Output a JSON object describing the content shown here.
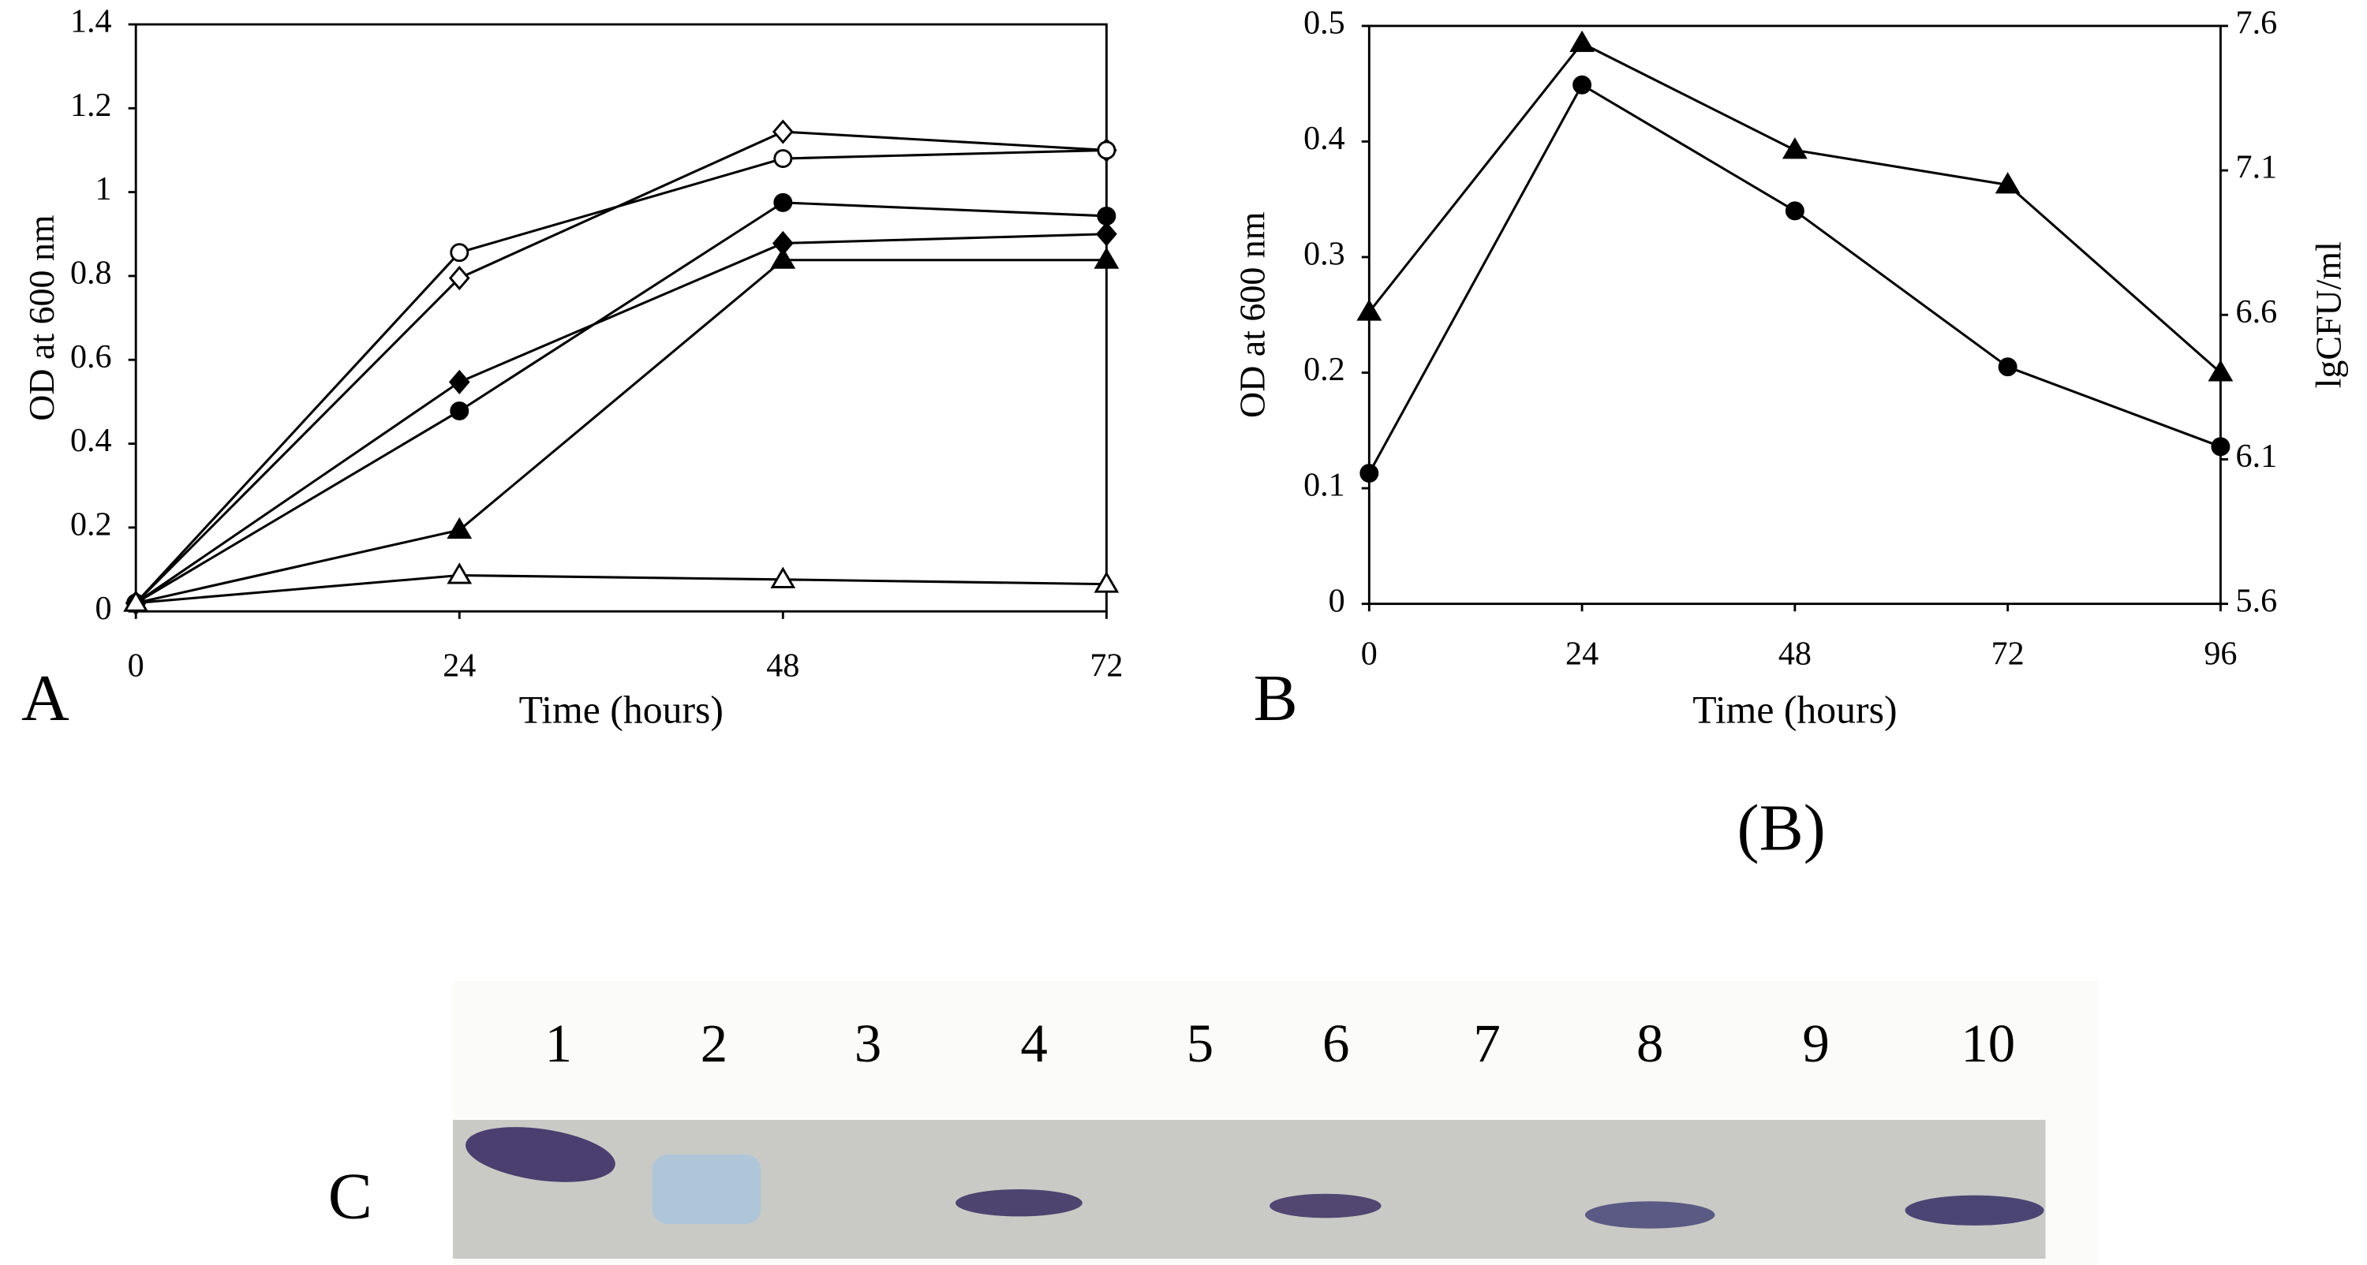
{
  "chart_data": [
    {
      "type": "line",
      "panel_label": "A",
      "x_label": "Time (hours)",
      "y_label": "OD at 600 nm",
      "x": [
        0,
        24,
        48,
        72
      ],
      "xlim": [
        0,
        72
      ],
      "xticks": [
        0,
        24,
        48,
        72
      ],
      "ylim": [
        0,
        1.4
      ],
      "yticks": [
        0,
        0.2,
        0.4,
        0.6,
        0.8,
        1,
        1.2,
        1.4
      ],
      "series": [
        {
          "marker": "diamond-open",
          "color": "#000000",
          "values": [
            0.02,
            0.795,
            1.144,
            1.1
          ]
        },
        {
          "marker": "circle-open",
          "color": "#000000",
          "values": [
            0.02,
            0.856,
            1.08,
            1.1
          ]
        },
        {
          "marker": "circle",
          "color": "#000000",
          "values": [
            0.02,
            0.478,
            0.975,
            0.943
          ]
        },
        {
          "marker": "diamond",
          "color": "#000000",
          "values": [
            0.02,
            0.547,
            0.878,
            0.9
          ]
        },
        {
          "marker": "triangle",
          "color": "#000000",
          "values": [
            0.02,
            0.194,
            0.838,
            0.838
          ]
        },
        {
          "marker": "triangle-open",
          "color": "#000000",
          "values": [
            0.02,
            0.086,
            0.076,
            0.065
          ]
        }
      ]
    },
    {
      "type": "line",
      "panel_label": "B",
      "x_label": "Time (hours)",
      "y_label": "OD at 600 nm",
      "y2_label": "lgCFU/ml",
      "x": [
        0,
        24,
        48,
        72,
        96
      ],
      "xlim": [
        0,
        96
      ],
      "xticks": [
        0,
        24,
        48,
        72,
        96
      ],
      "ylim": [
        0,
        0.5
      ],
      "yticks": [
        0,
        0.1,
        0.2,
        0.3,
        0.4,
        0.5
      ],
      "y2lim": [
        5.6,
        7.6
      ],
      "y2ticks": [
        5.6,
        6.1,
        6.6,
        7.1,
        7.6
      ],
      "series": [
        {
          "marker": "circle",
          "color": "#000000",
          "values": [
            0.113,
            0.449,
            0.34,
            0.205,
            0.136
          ]
        },
        {
          "marker": "triangle",
          "color": "#000000",
          "axis": "y2",
          "values": [
            6.61,
            7.54,
            7.17,
            7.05,
            6.4
          ]
        }
      ]
    }
  ],
  "caption": "(B)",
  "gel": {
    "label": "C",
    "lanes": [
      "1",
      "2",
      "3",
      "4",
      "5",
      "6",
      "7",
      "8",
      "9",
      "10"
    ]
  }
}
